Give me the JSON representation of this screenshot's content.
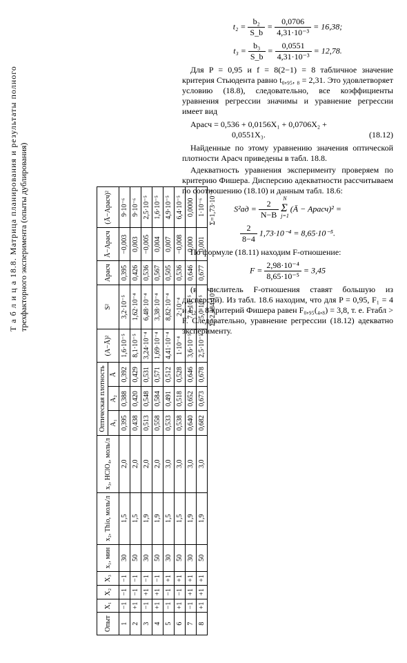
{
  "table": {
    "caption_line1": "Т а б л и ц а  18.8. Матрица планирования и результаты полного",
    "caption_line2": "трехфакторного эксперимента (опыты дублирования)",
    "headers": {
      "opyt": "Опыт",
      "X1": "X₁",
      "X2": "X₂",
      "X3": "X₃",
      "x1": "x₁, мин",
      "x2": "x₂, Thio, моль/л",
      "x3": "x₃, HClO₄, моль/л",
      "opt_group": "Оптическая плотность",
      "A1": "A₁",
      "A2": "A₂",
      "Abar": "Ā",
      "AmAb2": "(A−Ā)²",
      "S2": "S²",
      "Arasch": "Aрасч",
      "AbmAr": "Ā−Aрасч",
      "AbmAr2": "(Ā−Aрасч)²"
    },
    "rows": [
      {
        "n": "1",
        "X1": "−1",
        "X2": "−1",
        "X3": "−1",
        "x1": "30",
        "x2": "1,5",
        "x3": "2,0",
        "A1": "0,395",
        "A2": "0,388",
        "Ab": "0,392",
        "AmAb2": "1,6·10⁻⁵",
        "S2": "3,2·10⁻⁵",
        "Ar": "0,395",
        "d": "−0,003",
        "d2": "9·10⁻⁶"
      },
      {
        "n": "2",
        "X1": "+1",
        "X2": "−1",
        "X3": "−1",
        "x1": "50",
        "x2": "1,5",
        "x3": "2,0",
        "A1": "0,438",
        "A2": "0,420",
        "Ab": "0,429",
        "AmAb2": "8,1·10⁻⁵",
        "S2": "1,62·10⁻⁴",
        "Ar": "0,426",
        "d": "0,003",
        "d2": "9·10⁻⁶"
      },
      {
        "n": "3",
        "X1": "−1",
        "X2": "+1",
        "X3": "−1",
        "x1": "30",
        "x2": "1,9",
        "x3": "2,0",
        "A1": "0,513",
        "A2": "0,548",
        "Ab": "0,531",
        "AmAb2": "3,24·10⁻⁴",
        "S2": "6,48·10⁻⁴",
        "Ar": "0,536",
        "d": "−0,005",
        "d2": "2,5·10⁻⁵"
      },
      {
        "n": "4",
        "X1": "+1",
        "X2": "+1",
        "X3": "−1",
        "x1": "50",
        "x2": "1,9",
        "x3": "2,0",
        "A1": "0,558",
        "A2": "0,584",
        "Ab": "0,571",
        "AmAb2": "1,69·10⁻⁴",
        "S2": "3,38·10⁻⁴",
        "Ar": "0,567",
        "d": "0,004",
        "d2": "1,6·10⁻⁵"
      },
      {
        "n": "5",
        "X1": "−1",
        "X2": "−1",
        "X3": "+1",
        "x1": "30",
        "x2": "1,5",
        "x3": "3,0",
        "A1": "0,533",
        "A2": "0,491",
        "Ab": "0,512",
        "AmAb2": "4,41·10⁻⁴",
        "S2": "8,82·10⁻⁴",
        "Ar": "0,505",
        "d": "0,007",
        "d2": "4,9·10⁻⁵"
      },
      {
        "n": "6",
        "X1": "+1",
        "X2": "−1",
        "X3": "+1",
        "x1": "50",
        "x2": "1,5",
        "x3": "3,0",
        "A1": "0,538",
        "A2": "0,518",
        "Ab": "0,528",
        "AmAb2": "1·10⁻⁴",
        "S2": "2·10⁻⁴",
        "Ar": "0,536",
        "d": "−0,008",
        "d2": "6,4·10⁻⁵"
      },
      {
        "n": "7",
        "X1": "−1",
        "X2": "+1",
        "X3": "+1",
        "x1": "30",
        "x2": "1,9",
        "x3": "3,0",
        "A1": "0,640",
        "A2": "0,652",
        "Ab": "0,646",
        "AmAb2": "3,6·10⁻⁵",
        "S2": "7,2·10⁻⁵",
        "Ar": "0,646",
        "d": "0,000",
        "d2": "0,0000"
      },
      {
        "n": "8",
        "X1": "+1",
        "X2": "+1",
        "X3": "+1",
        "x1": "50",
        "x2": "1,9",
        "x3": "3,0",
        "A1": "0,682",
        "A2": "0,673",
        "Ab": "0,678",
        "AmAb2": "2,5·10⁻⁵",
        "S2": "5,0·10⁻⁵",
        "Ar": "0,677",
        "d": "0,001",
        "d2": "1·10⁻⁶"
      }
    ],
    "sums": {
      "S2": "Σ=2,384·10⁻³",
      "d2": "Σ=1,73·10⁻⁴"
    }
  },
  "text": {
    "t2_left": "t₂ =",
    "t2_num": "b₂",
    "t2_den": "S_b",
    "t2_eq": "=",
    "t2_num2": "0,0706",
    "t2_den2": "4,31·10⁻³",
    "t2_res": "= 16,38;",
    "t3_left": "t₃ =",
    "t3_num": "b₃",
    "t3_den": "S_b",
    "t3_num2": "0,0551",
    "t3_den2": "4,31·10⁻³",
    "t3_res": "= 12,78.",
    "p1": "Для P = 0,95 и f = 8(2−1) = 8 табличное значение критерия Стьюдента равно t₀,₉₅, ₈ = 2,31. Это удовлетворяет условию (18.8), следовательно, все коэффициенты уравнения регрессии значимы и уравнение регрессии имеет вид",
    "eq1812_l1": "Aрасч = 0,536 + 0,0156X₁ + 0,0706X₂ +",
    "eq1812_l2": "0,0551X₃.",
    "eq1812_num": "(18.12)",
    "p2": "Найденные по этому уравнению значения оптической плотности Aрасч приведены в табл. 18.8.",
    "p3": "Адекватность уравнения эксперименту проверяем по критерию Фишера. Дисперсию адекватности рассчитываем по соотношению (18.10) и данным табл. 18.6:",
    "Sad_left": "S²ад =",
    "Sad_num1": "2",
    "Sad_den1": "N−B",
    "Sad_sum": "Σ",
    "Sad_sumlim": "N",
    "Sad_sumfrom": "j=1",
    "Sad_body": "(Ā − Aрасч)² =",
    "Sad_num2": "2",
    "Sad_den2": "8−4",
    "Sad_mid": "1,73·10⁻⁴ = 8,65·10⁻⁵.",
    "p4": "По формуле (18.11) находим F-отношение:",
    "F_left": "F =",
    "F_num": "2,98·10⁻⁴",
    "F_den": "8,65·10⁻⁵",
    "F_res": "= 3,45",
    "p5": "(в числитель F-отношения ставят большую из дисперсий). Из табл. 18.6 находим, что для P = 0,95, F₁ = 4 и F₂ = 8 критерий Фишера равен F₀,₉₅(₄,₈) = 3,8, т. е. Fтабл > F. Следовательно, уравнение регрессии (18.12) адекватно эксперименту."
  }
}
